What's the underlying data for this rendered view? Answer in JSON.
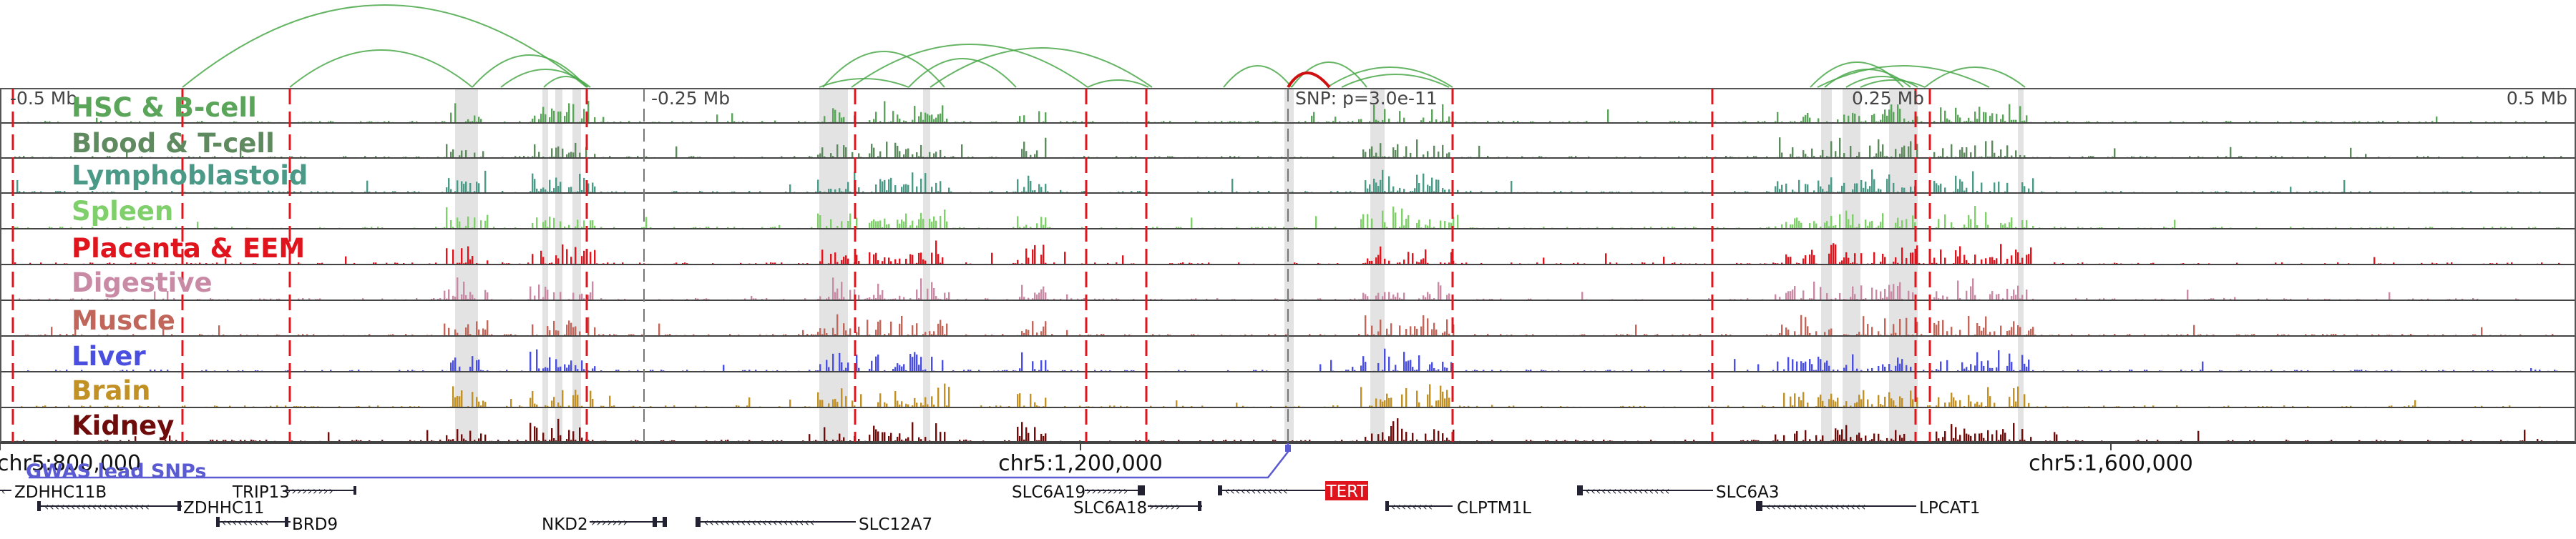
{
  "scale_labels": [
    "-0.5 Mb",
    "-0.25 Mb",
    "0.25 Mb",
    "0.5 Mb"
  ],
  "snp_label": "SNP: p=3.0e-11",
  "tracks": [
    {
      "label": "HSC & B-cell",
      "color": "#5aa55a"
    },
    {
      "label": "Blood & T-cell",
      "color": "#5f8a5f"
    },
    {
      "label": "Lymphoblastoid",
      "color": "#4a9a87"
    },
    {
      "label": "Spleen",
      "color": "#7fd06a"
    },
    {
      "label": "Placenta & EEM",
      "color": "#e0141c"
    },
    {
      "label": "Digestive",
      "color": "#c98aa6"
    },
    {
      "label": "Muscle",
      "color": "#c0665a"
    },
    {
      "label": "Liver",
      "color": "#4b4fe0"
    },
    {
      "label": "Brain",
      "color": "#c19125"
    },
    {
      "label": "Kidney",
      "color": "#6e0c0c"
    }
  ],
  "coordinates": [
    "chr5:800,000",
    "chr5:1,200,000",
    "chr5:1,600,000"
  ],
  "gwas_label": "GWAS lead SNPs",
  "genes": [
    {
      "name": "ZDHHC11B",
      "strand": "-",
      "highlight": false
    },
    {
      "name": "TRIP13",
      "strand": "+",
      "highlight": false
    },
    {
      "name": "ZDHHC11",
      "strand": "-",
      "highlight": false
    },
    {
      "name": "BRD9",
      "strand": "-",
      "highlight": false
    },
    {
      "name": "NKD2",
      "strand": "+",
      "highlight": false
    },
    {
      "name": "SLC12A7",
      "strand": "-",
      "highlight": false
    },
    {
      "name": "SLC6A19",
      "strand": "+",
      "highlight": false
    },
    {
      "name": "SLC6A18",
      "strand": "+",
      "highlight": false
    },
    {
      "name": "TERT",
      "strand": "-",
      "highlight": true
    },
    {
      "name": "CLPTM1L",
      "strand": "-",
      "highlight": false
    },
    {
      "name": "SLC6A3",
      "strand": "-",
      "highlight": false
    },
    {
      "name": "LPCAT1",
      "strand": "-",
      "highlight": false
    }
  ],
  "colors": {
    "loop": "#4aa84a",
    "highlight_loop": "#d01010",
    "boundary": "#e0141c",
    "gwas": "#5a5ad2",
    "shade": "#e3e3e3"
  }
}
